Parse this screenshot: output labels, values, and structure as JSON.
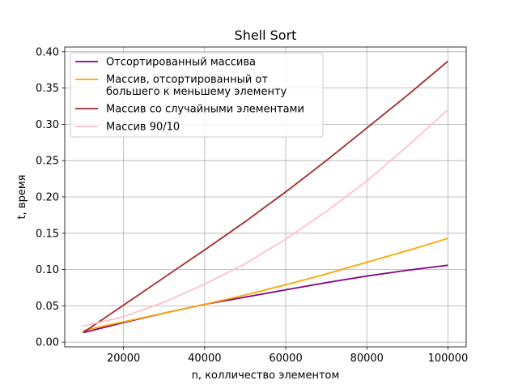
{
  "chart_data": {
    "type": "line",
    "title": "Shell Sort",
    "xlabel": "n, колличество элементом",
    "ylabel": "t, время",
    "xlim": [
      5500,
      104500
    ],
    "ylim": [
      -0.0065,
      0.4065
    ],
    "xticks": [
      20000,
      40000,
      60000,
      80000,
      100000
    ],
    "xtick_labels": [
      "20000",
      "40000",
      "60000",
      "80000",
      "100000"
    ],
    "yticks": [
      0.0,
      0.05,
      0.1,
      0.15,
      0.2,
      0.25,
      0.3,
      0.35,
      0.4
    ],
    "ytick_labels": [
      "0.00",
      "0.05",
      "0.10",
      "0.15",
      "0.20",
      "0.25",
      "0.30",
      "0.35",
      "0.40"
    ],
    "grid": true,
    "legend_position": "top-left",
    "x": [
      10000,
      20000,
      30000,
      40000,
      50000,
      60000,
      70000,
      80000,
      90000,
      100000
    ],
    "series": [
      {
        "name": "Отсортированный массива",
        "color": "#800080",
        "values": [
          0.013,
          0.027,
          0.04,
          0.052,
          0.062,
          0.072,
          0.082,
          0.091,
          0.099,
          0.106
        ]
      },
      {
        "name": "Массив, отсортированный от большего к меньшему элементу",
        "legend_lines": [
          "Массив, отсортированный от",
          "большего к меньшему элементу"
        ],
        "color": "#ffa500",
        "values": [
          0.016,
          0.028,
          0.04,
          0.052,
          0.065,
          0.079,
          0.094,
          0.11,
          0.126,
          0.143
        ]
      },
      {
        "name": "Массив со случайными элементами",
        "color": "#a52a2a",
        "values": [
          0.013,
          0.051,
          0.089,
          0.127,
          0.166,
          0.207,
          0.25,
          0.295,
          0.34,
          0.387
        ]
      },
      {
        "name": "Массив 90/10",
        "color": "#ffc0cb",
        "values": [
          0.022,
          0.035,
          0.055,
          0.08,
          0.108,
          0.142,
          0.18,
          0.222,
          0.27,
          0.32
        ]
      }
    ]
  }
}
